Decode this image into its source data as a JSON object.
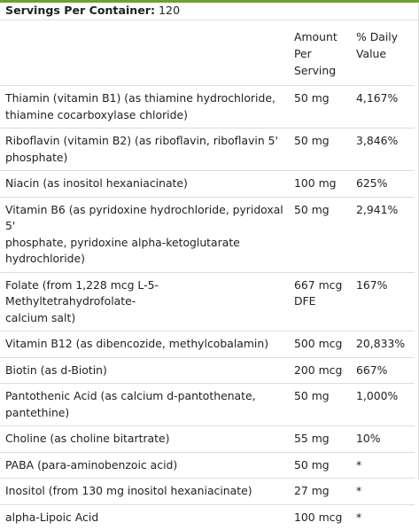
{
  "servings": {
    "label": "Servings Per Container:",
    "value": "120"
  },
  "table": {
    "headers": {
      "amount_lines": [
        "Amount",
        "Per",
        "Serving"
      ],
      "daily_lines": [
        "% Daily",
        "Value"
      ]
    },
    "rows": [
      {
        "name_lines": [
          "Thiamin (vitamin B1) (as thiamine hydrochloride,",
          "thiamine cocarboxylase chloride)"
        ],
        "amount_lines": [
          "50 mg"
        ],
        "dv": "4,167%"
      },
      {
        "name_lines": [
          "Riboflavin (vitamin B2) (as riboflavin, riboflavin 5'",
          "phosphate)"
        ],
        "amount_lines": [
          "50 mg"
        ],
        "dv": "3,846%"
      },
      {
        "name_lines": [
          "Niacin (as inositol hexaniacinate)"
        ],
        "amount_lines": [
          "100 mg"
        ],
        "dv": "625%"
      },
      {
        "name_lines": [
          "Vitamin B6 (as pyridoxine hydrochloride, pyridoxal 5'",
          "phosphate, pyridoxine alpha-ketoglutarate",
          "hydrochloride)"
        ],
        "amount_lines": [
          "50 mg"
        ],
        "dv": "2,941%"
      },
      {
        "name_lines": [
          "Folate (from 1,228 mcg L-5-Methyltetrahydrofolate-",
          "calcium salt)"
        ],
        "amount_lines": [
          "667 mcg",
          "DFE"
        ],
        "dv": "167%"
      },
      {
        "name_lines": [
          "Vitamin B12 (as dibencozide, methylcobalamin)"
        ],
        "amount_lines": [
          "500 mcg"
        ],
        "dv": "20,833%"
      },
      {
        "name_lines": [
          "Biotin (as d-Biotin)"
        ],
        "amount_lines": [
          "200 mcg"
        ],
        "dv": "667%"
      },
      {
        "name_lines": [
          "Pantothenic Acid (as calcium d-pantothenate, pantethine)"
        ],
        "amount_lines": [
          "50 mg"
        ],
        "dv": "1,000%"
      },
      {
        "name_lines": [
          "Choline (as choline bitartrate)"
        ],
        "amount_lines": [
          "55 mg"
        ],
        "dv": "10%"
      },
      {
        "name_lines": [
          "PABA (para-aminobenzoic acid)"
        ],
        "amount_lines": [
          "50 mg"
        ],
        "dv": "*"
      },
      {
        "name_lines": [
          "Inositol (from 130 mg inositol hexaniacinate)"
        ],
        "amount_lines": [
          "27 mg"
        ],
        "dv": "*"
      },
      {
        "name_lines": [
          "alpha-Lipoic Acid"
        ],
        "amount_lines": [
          "100 mcg"
        ],
        "dv": "*"
      }
    ]
  }
}
